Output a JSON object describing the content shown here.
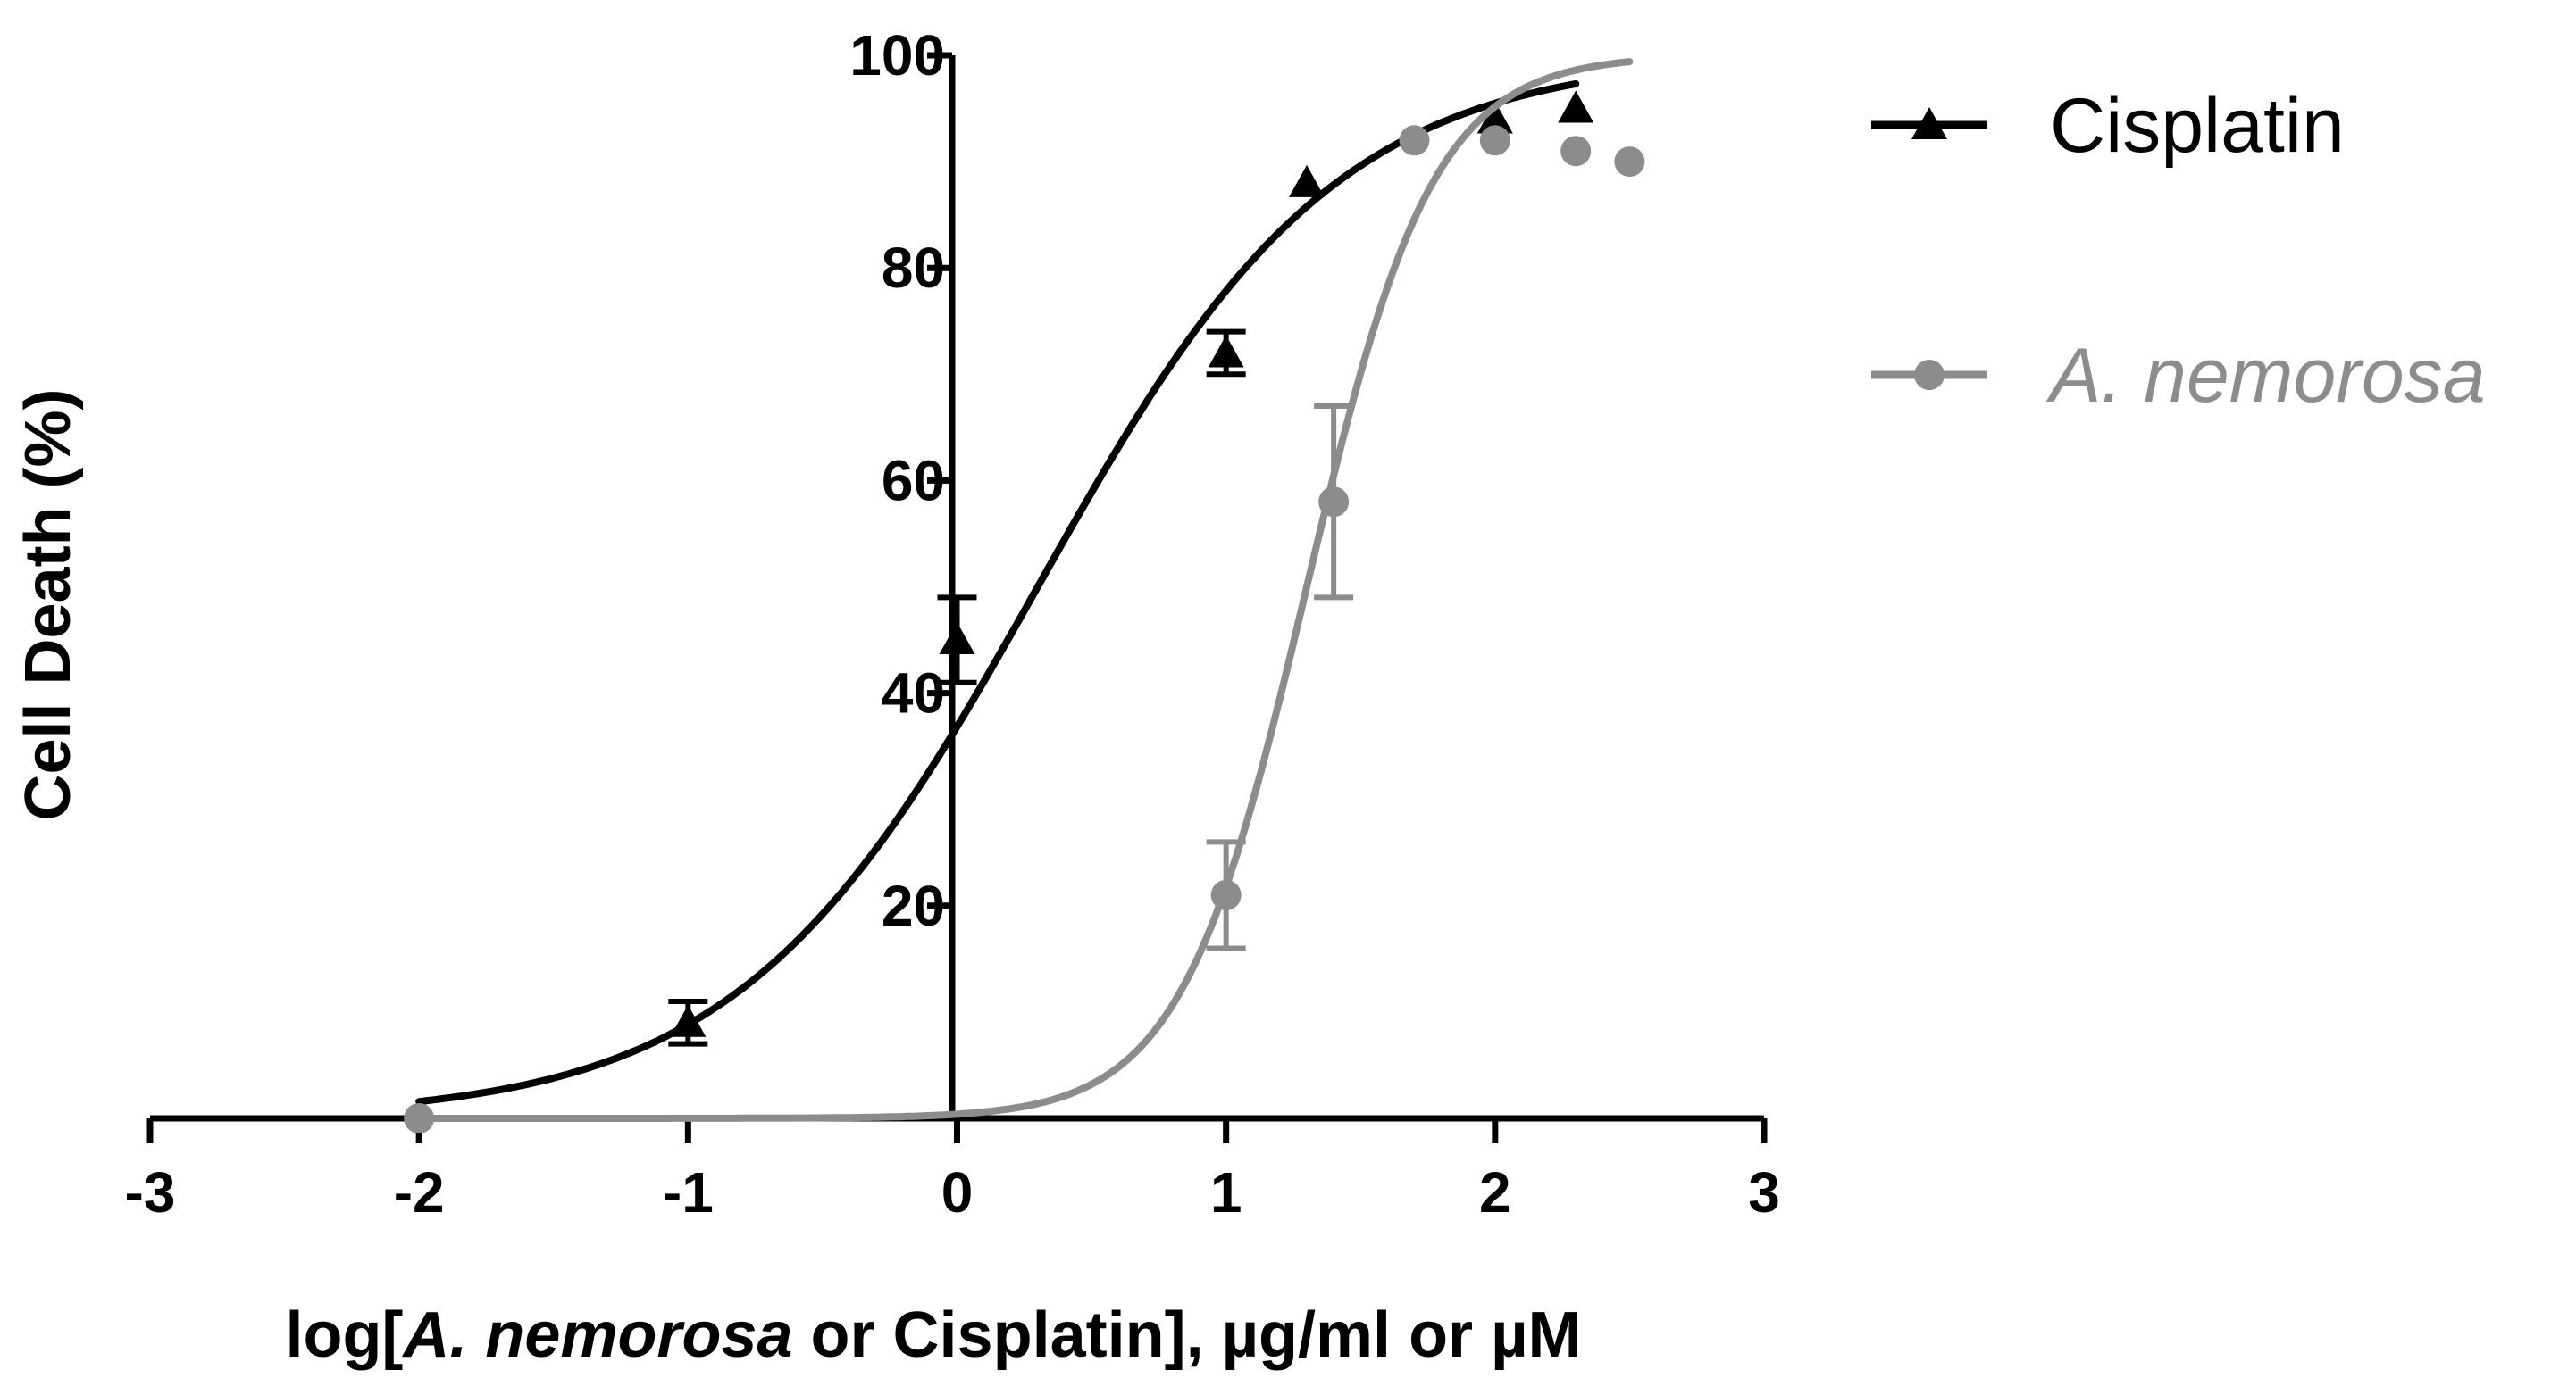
{
  "chart_data": {
    "type": "scatter",
    "title": "",
    "xlabel_parts": [
      {
        "text": "log[",
        "italic": false
      },
      {
        "text": "A. nemorosa",
        "italic": true
      },
      {
        "text": " or Cisplatin], µg/ml or µM",
        "italic": false
      }
    ],
    "ylabel": "Cell Death (%)",
    "xlim": [
      -3,
      3
    ],
    "ylim": [
      0,
      100
    ],
    "x_ticks": [
      -3,
      -2,
      -1,
      0,
      1,
      2,
      3
    ],
    "y_ticks": [
      20,
      40,
      60,
      80,
      100
    ],
    "x_tick_labels": [
      "-3",
      "-2",
      "-1",
      "0",
      "1",
      "2",
      "3"
    ],
    "y_tick_labels": [
      "20",
      "40",
      "60",
      "80",
      "100"
    ],
    "grid": false,
    "legend": "right",
    "series": [
      {
        "name": "Cisplatin",
        "color": "#000000",
        "marker": "triangle",
        "italic": false,
        "points": [
          {
            "x": -1,
            "y": 9,
            "err": 2
          },
          {
            "x": 0,
            "y": 45,
            "err": 4
          },
          {
            "x": 1,
            "y": 72,
            "err": 2
          },
          {
            "x": 1.3,
            "y": 88,
            "err": 0
          },
          {
            "x": 2,
            "y": 94,
            "err": 0
          },
          {
            "x": 2.3,
            "y": 95,
            "err": 0
          }
        ],
        "curve": {
          "bottom": 0,
          "top": 100,
          "logEC50": 0.3,
          "hill": 0.78,
          "x_from": -2,
          "x_to": 2.3
        }
      },
      {
        "name": "A. nemorosa",
        "color": "#8c8c8c",
        "marker": "circle",
        "italic": true,
        "points": [
          {
            "x": -2,
            "y": 0,
            "err": 0
          },
          {
            "x": 1,
            "y": 21,
            "err": 5
          },
          {
            "x": 1.4,
            "y": 58,
            "err": 9
          },
          {
            "x": 1.7,
            "y": 92,
            "err": 0
          },
          {
            "x": 2,
            "y": 92,
            "err": 0
          },
          {
            "x": 2.3,
            "y": 91,
            "err": 0
          },
          {
            "x": 2.5,
            "y": 90,
            "err": 0
          }
        ],
        "curve": {
          "bottom": 0,
          "top": 100,
          "logEC50": 1.3,
          "hill": 1.85,
          "x_from": -2,
          "x_to": 2.5
        }
      }
    ]
  }
}
